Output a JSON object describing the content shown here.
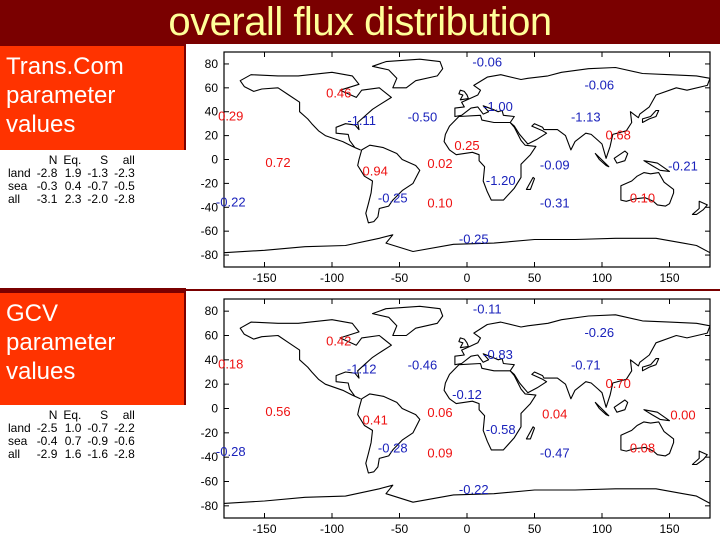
{
  "title": "overall flux distribution",
  "panels": [
    {
      "label": [
        "Trans.Com",
        "parameter",
        "values"
      ],
      "stats": {
        "header": [
          "",
          "N",
          "Eq.",
          "S",
          "all"
        ],
        "rows": [
          [
            "land",
            "-2.8",
            "1.9",
            "-1.3",
            "-2.3"
          ],
          [
            "sea",
            "-0.3",
            "0.4",
            "-0.7",
            "-0.5"
          ],
          [
            "all",
            "-3.1",
            "2.3",
            "-2.0",
            "-2.8"
          ]
        ]
      },
      "values": [
        {
          "text": "-0.06",
          "color": "blue",
          "lon": 15,
          "lat": 82
        },
        {
          "text": "0.46",
          "color": "red",
          "lon": -95,
          "lat": 56
        },
        {
          "text": "-0.06",
          "color": "blue",
          "lon": 98,
          "lat": 63
        },
        {
          "text": "-1.00",
          "color": "blue",
          "lon": 23,
          "lat": 45
        },
        {
          "text": "0.29",
          "color": "red",
          "lon": -175,
          "lat": 37
        },
        {
          "text": "-1.11",
          "color": "blue",
          "lon": -78,
          "lat": 33
        },
        {
          "text": "-0.50",
          "color": "blue",
          "lon": -33,
          "lat": 36
        },
        {
          "text": "-1.13",
          "color": "blue",
          "lon": 88,
          "lat": 36
        },
        {
          "text": "0.68",
          "color": "red",
          "lon": 112,
          "lat": 21
        },
        {
          "text": "0.25",
          "color": "red",
          "lon": 0,
          "lat": 12
        },
        {
          "text": "0.72",
          "color": "red",
          "lon": -140,
          "lat": -2
        },
        {
          "text": "0.94",
          "color": "red",
          "lon": -68,
          "lat": -9
        },
        {
          "text": "0.02",
          "color": "red",
          "lon": -20,
          "lat": -3
        },
        {
          "text": "-0.09",
          "color": "blue",
          "lon": 65,
          "lat": -4
        },
        {
          "text": "-0.21",
          "color": "blue",
          "lon": 160,
          "lat": -5
        },
        {
          "text": "-1.20",
          "color": "blue",
          "lon": 25,
          "lat": -17
        },
        {
          "text": "-0.25",
          "color": "blue",
          "lon": -55,
          "lat": -32
        },
        {
          "text": "0.10",
          "color": "red",
          "lon": -20,
          "lat": -36
        },
        {
          "text": "-0.31",
          "color": "blue",
          "lon": 65,
          "lat": -36
        },
        {
          "text": "0.10",
          "color": "red",
          "lon": 130,
          "lat": -32
        },
        {
          "text": "-0.22",
          "color": "blue",
          "lon": -175,
          "lat": -35
        },
        {
          "text": "-0.25",
          "color": "blue",
          "lon": 5,
          "lat": -66
        }
      ]
    },
    {
      "label": [
        "GCV",
        "parameter",
        "values"
      ],
      "stats": {
        "header": [
          "",
          "N",
          "Eq.",
          "S",
          "all"
        ],
        "rows": [
          [
            "land",
            "-2.5",
            "1.0",
            "-0.7",
            "-2.2"
          ],
          [
            "sea",
            "-0.4",
            "0.7",
            "-0.9",
            "-0.6"
          ],
          [
            "all",
            "-2.9",
            "1.6",
            "-1.6",
            "-2.8"
          ]
        ]
      },
      "values": [
        {
          "text": "-0.11",
          "color": "blue",
          "lon": 15,
          "lat": 82
        },
        {
          "text": "0.42",
          "color": "red",
          "lon": -95,
          "lat": 56
        },
        {
          "text": "-0.26",
          "color": "blue",
          "lon": 98,
          "lat": 63
        },
        {
          "text": "-0.83",
          "color": "blue",
          "lon": 23,
          "lat": 45
        },
        {
          "text": "0.18",
          "color": "red",
          "lon": -175,
          "lat": 37
        },
        {
          "text": "-1.12",
          "color": "blue",
          "lon": -78,
          "lat": 33
        },
        {
          "text": "-0.46",
          "color": "blue",
          "lon": -33,
          "lat": 36
        },
        {
          "text": "-0.71",
          "color": "blue",
          "lon": 88,
          "lat": 36
        },
        {
          "text": "0.70",
          "color": "red",
          "lon": 112,
          "lat": 21
        },
        {
          "text": "-0.12",
          "color": "blue",
          "lon": 0,
          "lat": 12
        },
        {
          "text": "0.56",
          "color": "red",
          "lon": -140,
          "lat": -2
        },
        {
          "text": "0.41",
          "color": "red",
          "lon": -68,
          "lat": -9
        },
        {
          "text": "0.06",
          "color": "red",
          "lon": -20,
          "lat": -3
        },
        {
          "text": "0.04",
          "color": "red",
          "lon": 65,
          "lat": -4
        },
        {
          "text": "0.00",
          "color": "red",
          "lon": 160,
          "lat": -5
        },
        {
          "text": "-0.58",
          "color": "blue",
          "lon": 25,
          "lat": -17
        },
        {
          "text": "-0.28",
          "color": "blue",
          "lon": -55,
          "lat": -32
        },
        {
          "text": "0.09",
          "color": "red",
          "lon": -20,
          "lat": -36
        },
        {
          "text": "-0.47",
          "color": "blue",
          "lon": 65,
          "lat": -36
        },
        {
          "text": "0.08",
          "color": "red",
          "lon": 130,
          "lat": -32
        },
        {
          "text": "-0.28",
          "color": "blue",
          "lon": -175,
          "lat": -35
        },
        {
          "text": "-0.22",
          "color": "blue",
          "lon": 5,
          "lat": -66
        }
      ]
    }
  ],
  "axes": {
    "x_ticks": [
      "-150",
      "-100",
      "-50",
      "0",
      "50",
      "100",
      "150"
    ],
    "y_ticks": [
      "80",
      "60",
      "40",
      "20",
      "0",
      "-20",
      "-40",
      "-60",
      "-80"
    ]
  },
  "colors": {
    "red": "#ee1111",
    "blue": "#1a22bb",
    "label_bg": "#ff3300",
    "title_bg": "#7a0000",
    "title_fg": "#ffff99"
  }
}
